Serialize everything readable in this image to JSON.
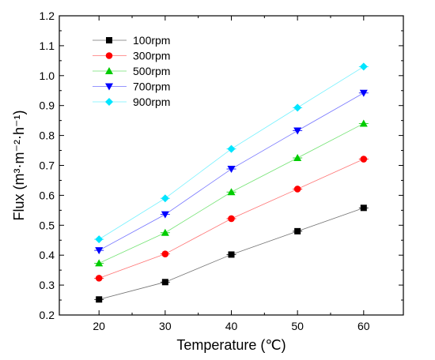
{
  "chart_data": {
    "type": "line",
    "xlabel": "Temperature (℃)",
    "ylabel": "Flux (m³·m⁻²·h⁻¹)",
    "x": [
      20,
      30,
      40,
      50,
      60
    ],
    "xlim": [
      14,
      66
    ],
    "ylim": [
      0.2,
      1.2
    ],
    "x_ticks": [
      "20",
      "30",
      "40",
      "50",
      "60"
    ],
    "y_ticks": [
      "0.2",
      "0.3",
      "0.4",
      "0.5",
      "0.6",
      "0.7",
      "0.8",
      "0.9",
      "1.0",
      "1.1",
      "1.2"
    ],
    "legend_position": "top-left",
    "grid": false,
    "series": [
      {
        "name": "100rpm",
        "values": [
          0.252,
          0.31,
          0.402,
          0.48,
          0.558
        ],
        "color": "#000000",
        "marker": "square"
      },
      {
        "name": "300rpm",
        "values": [
          0.323,
          0.404,
          0.522,
          0.621,
          0.721
        ],
        "color": "#ff0000",
        "marker": "circle"
      },
      {
        "name": "500rpm",
        "values": [
          0.373,
          0.475,
          0.611,
          0.725,
          0.84
        ],
        "color": "#00cc00",
        "marker": "triangle-up"
      },
      {
        "name": "700rpm",
        "values": [
          0.416,
          0.536,
          0.688,
          0.816,
          0.942
        ],
        "color": "#0000ff",
        "marker": "triangle-down"
      },
      {
        "name": "900rpm",
        "values": [
          0.453,
          0.59,
          0.755,
          0.893,
          1.03
        ],
        "color": "#00e5ff",
        "marker": "diamond"
      }
    ]
  }
}
